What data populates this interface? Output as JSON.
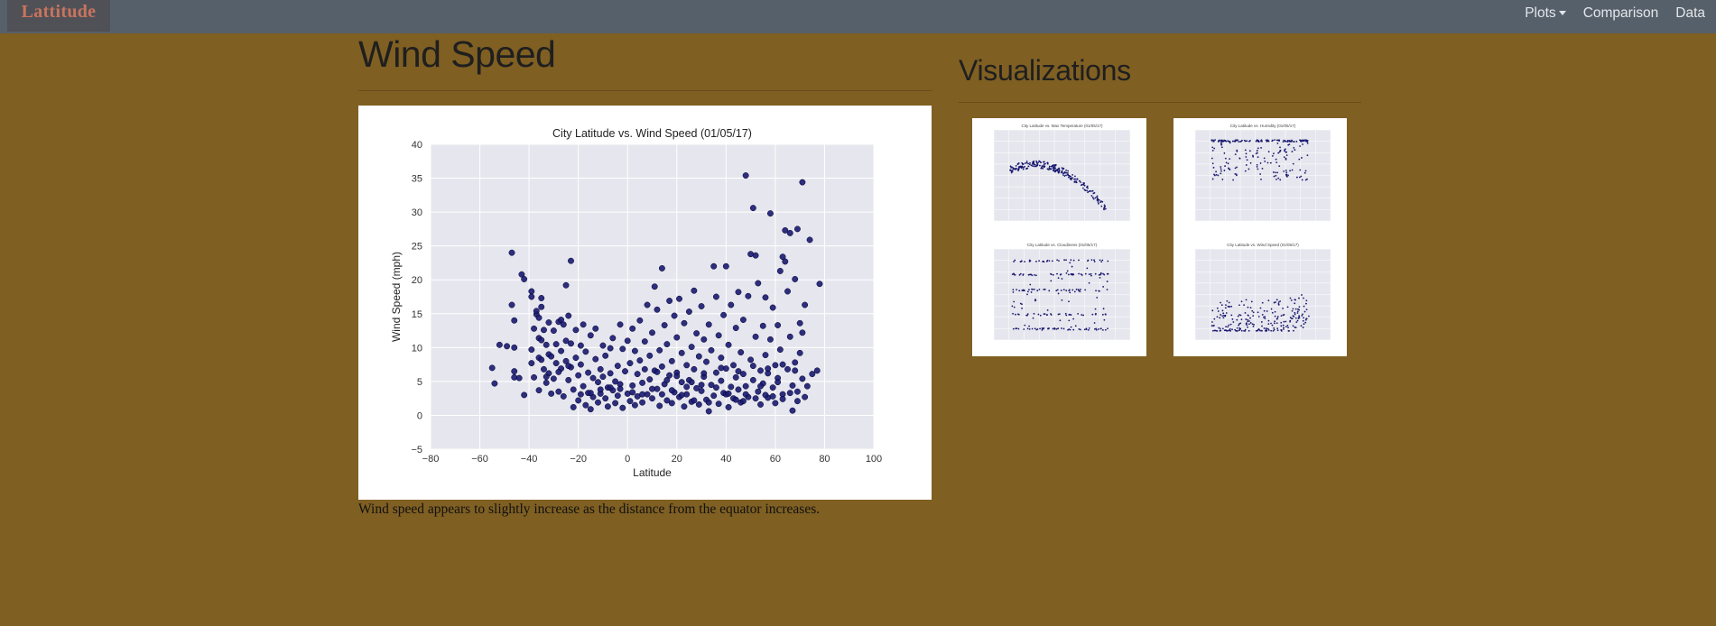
{
  "navbar": {
    "brand": "Lattitude",
    "links": [
      "Plots",
      "Comparison",
      "Data"
    ]
  },
  "main": {
    "title": "Wind Speed",
    "caption": "Wind speed appears to slightly increase as the distance from the equator increases."
  },
  "sidebar": {
    "title": "Visualizations",
    "thumbnails": [
      {
        "title": "City Latitude vs. Max Temperature (01/05/17)"
      },
      {
        "title": "City Latitude vs. Humidity (01/05/17)"
      },
      {
        "title": "City Latitude vs. Cloudiness (01/05/17)"
      },
      {
        "title": "City Latitude vs. Wind Speed (01/05/17)"
      }
    ]
  },
  "colors": {
    "page_background": "#7f5f22",
    "navbar": "#56606b",
    "brand_text": "#c9745c",
    "plot_background": "#e6e6ee",
    "marker": "#191970"
  },
  "chart_data": {
    "type": "scatter",
    "title": "City Latitude vs. Wind Speed (01/05/17)",
    "xlabel": "Latitude",
    "ylabel": "Wind Speed (mph)",
    "xlim": [
      -80,
      100
    ],
    "ylim": [
      -5,
      40
    ],
    "xticks": [
      -80,
      -60,
      -40,
      -20,
      0,
      20,
      40,
      60,
      80,
      100
    ],
    "yticks": [
      -5,
      0,
      5,
      10,
      15,
      20,
      25,
      30,
      35,
      40
    ],
    "grid": true,
    "points": [
      [
        -55,
        7
      ],
      [
        -54,
        4.7
      ],
      [
        -52,
        10.4
      ],
      [
        -47,
        24
      ],
      [
        -47,
        16.3
      ],
      [
        -46,
        14
      ],
      [
        -46,
        10
      ],
      [
        -46,
        6.5
      ],
      [
        -46,
        5.6
      ],
      [
        -43,
        20.8
      ],
      [
        -42,
        20.1
      ],
      [
        -42,
        3
      ],
      [
        -39,
        18.3
      ],
      [
        -39,
        17.5
      ],
      [
        -39,
        9.7
      ],
      [
        -39,
        7.7
      ],
      [
        -38,
        12.8
      ],
      [
        -38,
        5.6
      ],
      [
        -37,
        14.9
      ],
      [
        -37,
        15.4
      ],
      [
        -36,
        14.4
      ],
      [
        -36,
        11.4
      ],
      [
        -36,
        8.5
      ],
      [
        -36,
        3.7
      ],
      [
        -35,
        17.3
      ],
      [
        -35,
        16
      ],
      [
        -35,
        11.1
      ],
      [
        -35,
        8.2
      ],
      [
        -34,
        6.8
      ],
      [
        -34,
        12.6
      ],
      [
        -33,
        10.4
      ],
      [
        -33,
        4.8
      ],
      [
        -32,
        13.7
      ],
      [
        -32,
        9
      ],
      [
        -32,
        6.2
      ],
      [
        -31,
        3.2
      ],
      [
        -31,
        8.7
      ],
      [
        -30,
        12.5
      ],
      [
        -30,
        5.4
      ],
      [
        -29,
        10.5
      ],
      [
        -29,
        7.7
      ],
      [
        -28,
        13.8
      ],
      [
        -28,
        3.5
      ],
      [
        -27,
        9.5
      ],
      [
        -27,
        6.9
      ],
      [
        -26,
        13.4
      ],
      [
        -26,
        2.8
      ],
      [
        -25,
        19.2
      ],
      [
        -25,
        11
      ],
      [
        -25,
        8
      ],
      [
        -24,
        5.2
      ],
      [
        -24,
        14.7
      ],
      [
        -23,
        22.8
      ],
      [
        -23,
        10.6
      ],
      [
        -23,
        7.1
      ],
      [
        -22,
        3.8
      ],
      [
        -22,
        1.2
      ],
      [
        -21,
        12.6
      ],
      [
        -21,
        8.5
      ],
      [
        -20,
        5.9
      ],
      [
        -20,
        2.2
      ],
      [
        -19,
        10.3
      ],
      [
        -19,
        7.5
      ],
      [
        -18,
        13.4
      ],
      [
        -18,
        4.3
      ],
      [
        -17,
        9.4
      ],
      [
        -17,
        1.5
      ],
      [
        -16,
        6.3
      ],
      [
        -16,
        3.3
      ],
      [
        -15,
        11.8
      ],
      [
        -15,
        0.9
      ],
      [
        -14,
        5.5
      ],
      [
        -14,
        2.7
      ],
      [
        -13,
        12.8
      ],
      [
        -13,
        8.3
      ],
      [
        -12,
        4.9
      ],
      [
        -12,
        1.9
      ],
      [
        -11,
        6.8
      ],
      [
        -11,
        3.2
      ],
      [
        -10,
        10.3
      ],
      [
        -10,
        5.7
      ],
      [
        -9,
        2.5
      ],
      [
        -9,
        8.8
      ],
      [
        -8,
        4.1
      ],
      [
        -8,
        1.3
      ],
      [
        -7,
        9.9
      ],
      [
        -7,
        6.2
      ],
      [
        -6,
        3.7
      ],
      [
        -6,
        11.4
      ],
      [
        -5,
        5
      ],
      [
        -5,
        1.8
      ],
      [
        -4,
        7.3
      ],
      [
        -4,
        2.9
      ],
      [
        -3,
        13.4
      ],
      [
        -3,
        4.6
      ],
      [
        -2,
        9.8
      ],
      [
        -2,
        1.1
      ],
      [
        -1,
        6.5
      ],
      [
        0,
        3.2
      ],
      [
        0,
        11
      ],
      [
        1,
        2.1
      ],
      [
        1,
        7.7
      ],
      [
        2,
        12.8
      ],
      [
        2,
        4.4
      ],
      [
        3,
        9.5
      ],
      [
        3,
        1.5
      ],
      [
        4,
        6.1
      ],
      [
        4,
        2.8
      ],
      [
        5,
        14
      ],
      [
        5,
        8.1
      ],
      [
        6,
        4.8
      ],
      [
        6,
        1.9
      ],
      [
        7,
        10.9
      ],
      [
        7,
        6.8
      ],
      [
        8,
        3.1
      ],
      [
        8,
        16.3
      ],
      [
        9,
        8.8
      ],
      [
        9,
        5.3
      ],
      [
        10,
        12.2
      ],
      [
        10,
        2.5
      ],
      [
        11,
        19
      ],
      [
        11,
        6.6
      ],
      [
        12,
        15.6
      ],
      [
        12,
        3.9
      ],
      [
        13,
        9.6
      ],
      [
        13,
        1.4
      ],
      [
        14,
        21.7
      ],
      [
        14,
        7.2
      ],
      [
        15,
        4.6
      ],
      [
        15,
        13.3
      ],
      [
        16,
        2.2
      ],
      [
        16,
        10.5
      ],
      [
        17,
        5.9
      ],
      [
        17,
        16.9
      ],
      [
        18,
        1.8
      ],
      [
        18,
        8
      ],
      [
        19,
        3.4
      ],
      [
        19,
        14.7
      ],
      [
        20,
        6.3
      ],
      [
        20,
        11.5
      ],
      [
        21,
        2.7
      ],
      [
        21,
        17.2
      ],
      [
        22,
        4.9
      ],
      [
        22,
        9.2
      ],
      [
        23,
        1.3
      ],
      [
        23,
        13.6
      ],
      [
        24,
        7.4
      ],
      [
        24,
        3.1
      ],
      [
        25,
        15.3
      ],
      [
        25,
        5.2
      ],
      [
        26,
        10.1
      ],
      [
        26,
        2
      ],
      [
        27,
        18.4
      ],
      [
        27,
        6.8
      ],
      [
        28,
        4
      ],
      [
        28,
        12.1
      ],
      [
        29,
        1.6
      ],
      [
        29,
        8.7
      ],
      [
        30,
        3.6
      ],
      [
        30,
        16.1
      ],
      [
        31,
        5.7
      ],
      [
        31,
        11.2
      ],
      [
        32,
        2.3
      ],
      [
        32,
        7.9
      ],
      [
        33,
        13.4
      ],
      [
        33,
        0.6
      ],
      [
        34,
        4.5
      ],
      [
        34,
        9.6
      ],
      [
        35,
        22
      ],
      [
        35,
        2.9
      ],
      [
        36,
        6.3
      ],
      [
        36,
        17.5
      ],
      [
        37,
        1.7
      ],
      [
        37,
        11.8
      ],
      [
        38,
        5.1
      ],
      [
        38,
        8.5
      ],
      [
        39,
        3.3
      ],
      [
        39,
        14.8
      ],
      [
        40,
        22
      ],
      [
        40,
        6.9
      ],
      [
        41,
        1.2
      ],
      [
        41,
        10.4
      ],
      [
        42,
        4.2
      ],
      [
        42,
        16.3
      ],
      [
        43,
        2.5
      ],
      [
        43,
        7.4
      ],
      [
        44,
        12.9
      ],
      [
        44,
        5.6
      ],
      [
        45,
        3.8
      ],
      [
        45,
        18.2
      ],
      [
        46,
        1.9
      ],
      [
        46,
        9.3
      ],
      [
        47,
        6.1
      ],
      [
        47,
        14.1
      ],
      [
        48,
        35.4
      ],
      [
        48,
        4.3
      ],
      [
        49,
        17.6
      ],
      [
        49,
        2.7
      ],
      [
        50,
        23.8
      ],
      [
        50,
        8.2
      ],
      [
        51,
        30.6
      ],
      [
        51,
        5.2
      ],
      [
        52,
        23.6
      ],
      [
        52,
        11.6
      ],
      [
        53,
        3.5
      ],
      [
        53,
        19.5
      ],
      [
        54,
        6.6
      ],
      [
        54,
        1.6
      ],
      [
        55,
        13.2
      ],
      [
        55,
        4.7
      ],
      [
        56,
        17.4
      ],
      [
        56,
        8.9
      ],
      [
        57,
        2.6
      ],
      [
        57,
        6.2
      ],
      [
        58,
        29.8
      ],
      [
        58,
        11.2
      ],
      [
        59,
        4.1
      ],
      [
        59,
        15.9
      ],
      [
        60,
        7.4
      ],
      [
        60,
        1.8
      ],
      [
        61,
        13.3
      ],
      [
        61,
        5.5
      ],
      [
        62,
        21.3
      ],
      [
        62,
        9.7
      ],
      [
        63,
        23.4
      ],
      [
        63,
        3.1
      ],
      [
        64,
        27.3
      ],
      [
        64,
        22.7
      ],
      [
        65,
        18.3
      ],
      [
        65,
        6.8
      ],
      [
        66,
        26.9
      ],
      [
        66,
        11.6
      ],
      [
        67,
        4.4
      ],
      [
        67,
        0.7
      ],
      [
        68,
        20.1
      ],
      [
        68,
        7.8
      ],
      [
        69,
        27.5
      ],
      [
        69,
        3.5
      ],
      [
        70,
        13.6
      ],
      [
        70,
        9.2
      ],
      [
        71,
        34.4
      ],
      [
        71,
        12.2
      ],
      [
        72,
        16.3
      ],
      [
        72,
        2.7
      ],
      [
        73,
        4.3
      ],
      [
        74,
        25.9
      ],
      [
        75,
        6.1
      ],
      [
        78,
        19.4
      ],
      [
        77,
        6.6
      ],
      [
        -49,
        10.2
      ],
      [
        -44,
        5.5
      ],
      [
        -27,
        14.1
      ],
      [
        22,
        3
      ],
      [
        27,
        2.2
      ],
      [
        33,
        1.9
      ],
      [
        40,
        3.1
      ],
      [
        44,
        2.3
      ],
      [
        48,
        3.1
      ],
      [
        52,
        2.5
      ],
      [
        56,
        3
      ],
      [
        59,
        2.8
      ],
      [
        63,
        2.4
      ],
      [
        66,
        3.3
      ],
      [
        69,
        2.1
      ],
      [
        36,
        4.1
      ],
      [
        30,
        4.5
      ],
      [
        24,
        4.2
      ],
      [
        18,
        3.7
      ],
      [
        14,
        3.1
      ],
      [
        10,
        3.9
      ],
      [
        6,
        3.1
      ],
      [
        2,
        3.4
      ],
      [
        -3,
        3.9
      ],
      [
        -7,
        4.1
      ],
      [
        -11,
        3.8
      ],
      [
        -15,
        3.3
      ],
      [
        -19,
        3.1
      ],
      [
        31,
        6.2
      ],
      [
        38,
        7
      ],
      [
        45,
        6.5
      ],
      [
        51,
        7.3
      ],
      [
        57,
        6.9
      ],
      [
        63,
        7.5
      ],
      [
        68,
        6.6
      ],
      [
        26,
        4.9
      ],
      [
        20,
        5.8
      ],
      [
        16,
        5.2
      ],
      [
        12,
        6.4
      ],
      [
        41,
        3.2
      ],
      [
        47,
        2.1
      ],
      [
        54,
        4.3
      ],
      [
        61,
        4.9
      ],
      [
        71,
        5.4
      ],
      [
        -24,
        7.3
      ],
      [
        -28,
        6.4
      ],
      [
        -33,
        5.7
      ]
    ]
  }
}
